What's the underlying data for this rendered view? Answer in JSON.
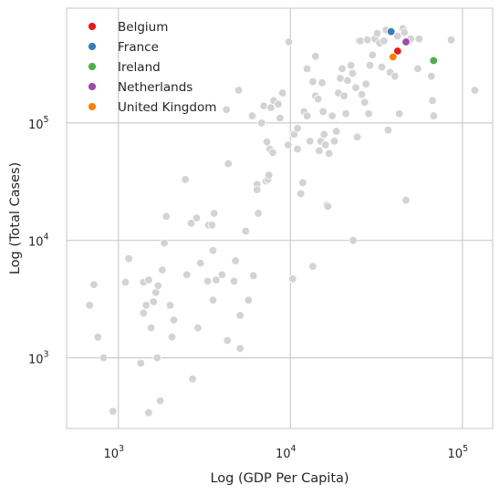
{
  "chart_data": {
    "type": "scatter",
    "xlabel": "Log (GDP Per Capita)",
    "ylabel": "Log (Total Cases)",
    "xscale": "log",
    "yscale": "log",
    "xlim": [
      500,
      150000
    ],
    "ylim": [
      250,
      950000
    ],
    "grid": true,
    "legend_placement": "top-left",
    "x_ticks": [
      {
        "value": 1000,
        "base": "10",
        "exp": "3"
      },
      {
        "value": 10000,
        "base": "10",
        "exp": "4"
      },
      {
        "value": 100000,
        "base": "10",
        "exp": "5"
      }
    ],
    "y_ticks": [
      {
        "value": 1000,
        "base": "10",
        "exp": "3"
      },
      {
        "value": 10000,
        "base": "10",
        "exp": "4"
      },
      {
        "value": 100000,
        "base": "10",
        "exp": "5"
      }
    ],
    "background_color": "#d3d3d3",
    "highlight_series": [
      {
        "name": "Belgium",
        "color": "#e41a1c",
        "x": 42000,
        "y": 410000
      },
      {
        "name": "France",
        "color": "#377eb8",
        "x": 38500,
        "y": 600000
      },
      {
        "name": "Ireland",
        "color": "#4daf4a",
        "x": 68000,
        "y": 340000
      },
      {
        "name": "Netherlands",
        "color": "#984ea3",
        "x": 47000,
        "y": 490000
      },
      {
        "name": "United Kingdom",
        "color": "#ff7f00",
        "x": 39500,
        "y": 365000
      }
    ],
    "background_points": [
      [
        680,
        2800
      ],
      [
        720,
        4200
      ],
      [
        760,
        1500
      ],
      [
        820,
        1000
      ],
      [
        930,
        350
      ],
      [
        1100,
        4400
      ],
      [
        1150,
        7000
      ],
      [
        1350,
        900
      ],
      [
        1400,
        4400
      ],
      [
        1400,
        2400
      ],
      [
        1450,
        2800
      ],
      [
        1500,
        4600
      ],
      [
        1500,
        340
      ],
      [
        1550,
        1800
      ],
      [
        1600,
        3000
      ],
      [
        1650,
        3600
      ],
      [
        1680,
        1000
      ],
      [
        1700,
        4100
      ],
      [
        1750,
        430
      ],
      [
        1800,
        5600
      ],
      [
        1850,
        9500
      ],
      [
        1900,
        16000
      ],
      [
        2000,
        2800
      ],
      [
        2050,
        1500
      ],
      [
        2100,
        2100
      ],
      [
        2450,
        33000
      ],
      [
        2500,
        5100
      ],
      [
        2650,
        14000
      ],
      [
        2700,
        660
      ],
      [
        2850,
        15500
      ],
      [
        2900,
        1800
      ],
      [
        3000,
        6400
      ],
      [
        3300,
        4500
      ],
      [
        3350,
        13500
      ],
      [
        3500,
        13500
      ],
      [
        3550,
        8200
      ],
      [
        3600,
        17000
      ],
      [
        3550,
        3100
      ],
      [
        3700,
        4600
      ],
      [
        4000,
        5100
      ],
      [
        4250,
        130000
      ],
      [
        4350,
        45000
      ],
      [
        4300,
        1400
      ],
      [
        4700,
        4500
      ],
      [
        4800,
        6700
      ],
      [
        5000,
        190000
      ],
      [
        5100,
        2300
      ],
      [
        5100,
        1200
      ],
      [
        5500,
        12000
      ],
      [
        5700,
        3100
      ],
      [
        6000,
        115000
      ],
      [
        6100,
        5000
      ],
      [
        6400,
        30000
      ],
      [
        6400,
        27000
      ],
      [
        6500,
        17000
      ],
      [
        6800,
        100000
      ],
      [
        7000,
        140000
      ],
      [
        7200,
        32000
      ],
      [
        7300,
        69000
      ],
      [
        7400,
        33000
      ],
      [
        7500,
        36000
      ],
      [
        7600,
        60000
      ],
      [
        7700,
        135000
      ],
      [
        7900,
        56000
      ],
      [
        8000,
        155000
      ],
      [
        8500,
        145000
      ],
      [
        8700,
        110000
      ],
      [
        9000,
        180000
      ],
      [
        9700,
        65000
      ],
      [
        9800,
        490000
      ],
      [
        10300,
        4700
      ],
      [
        10500,
        80000
      ],
      [
        11000,
        60000
      ],
      [
        11000,
        90000
      ],
      [
        11500,
        25000
      ],
      [
        11800,
        31000
      ],
      [
        12000,
        125000
      ],
      [
        12500,
        290000
      ],
      [
        12500,
        115000
      ],
      [
        13000,
        70000
      ],
      [
        13500,
        6000
      ],
      [
        13500,
        225000
      ],
      [
        14000,
        170000
      ],
      [
        14000,
        370000
      ],
      [
        14500,
        160000
      ],
      [
        14700,
        58000
      ],
      [
        15000,
        70000
      ],
      [
        15300,
        220000
      ],
      [
        15500,
        125000
      ],
      [
        15700,
        80000
      ],
      [
        16000,
        65000
      ],
      [
        16300,
        20000
      ],
      [
        16500,
        19500
      ],
      [
        16800,
        55000
      ],
      [
        17500,
        115000
      ],
      [
        18000,
        70000
      ],
      [
        18500,
        85000
      ],
      [
        19000,
        180000
      ],
      [
        19500,
        240000
      ],
      [
        20000,
        290000
      ],
      [
        20500,
        170000
      ],
      [
        21000,
        120000
      ],
      [
        21500,
        230000
      ],
      [
        22500,
        310000
      ],
      [
        23000,
        265000
      ],
      [
        23200,
        10000
      ],
      [
        24000,
        200000
      ],
      [
        24500,
        76000
      ],
      [
        25000,
        500000
      ],
      [
        25500,
        500000
      ],
      [
        26000,
        175000
      ],
      [
        27000,
        150000
      ],
      [
        27500,
        215000
      ],
      [
        28000,
        510000
      ],
      [
        28500,
        120000
      ],
      [
        29000,
        310000
      ],
      [
        30000,
        380000
      ],
      [
        31000,
        520000
      ],
      [
        32000,
        580000
      ],
      [
        33000,
        480000
      ],
      [
        34000,
        300000
      ],
      [
        36000,
        620000
      ],
      [
        35000,
        500000
      ],
      [
        37000,
        87000
      ],
      [
        38000,
        270000
      ],
      [
        40500,
        250000
      ],
      [
        42000,
        550000
      ],
      [
        43000,
        120000
      ],
      [
        45000,
        640000
      ],
      [
        46000,
        590000
      ],
      [
        47000,
        22000
      ],
      [
        49000,
        500000
      ],
      [
        50000,
        520000
      ],
      [
        55000,
        290000
      ],
      [
        56000,
        520000
      ],
      [
        66000,
        250000
      ],
      [
        67000,
        155000
      ],
      [
        68000,
        115000
      ],
      [
        86000,
        510000
      ],
      [
        118000,
        190000
      ]
    ]
  }
}
